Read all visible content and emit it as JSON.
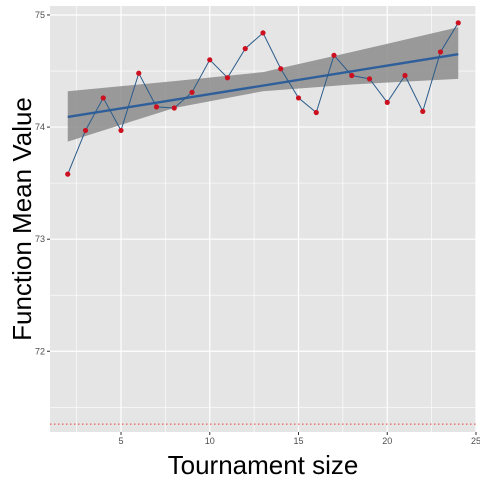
{
  "chart_data": {
    "type": "line",
    "title": "",
    "xlabel": "Tournament size",
    "ylabel": "Function Mean Value",
    "xlim": [
      1.0,
      25.0
    ],
    "ylim": [
      71.28,
      75.08
    ],
    "x_ticks": [
      5,
      10,
      15,
      20,
      25
    ],
    "y_ticks": [
      72,
      73,
      74,
      75
    ],
    "x_tick_labels": [
      "5",
      "10",
      "15",
      "20",
      "25"
    ],
    "y_tick_labels": [
      "72",
      "73",
      "74",
      "75"
    ],
    "grid": true,
    "legend": "none",
    "series": [
      {
        "x": [
          2,
          3,
          4,
          5,
          6,
          7,
          8,
          9,
          10,
          11,
          12,
          13,
          14,
          15,
          16,
          17,
          18,
          19,
          20,
          21,
          22,
          23,
          24
        ],
        "values": [
          73.58,
          73.97,
          74.26,
          73.97,
          74.48,
          74.18,
          74.17,
          74.31,
          74.6,
          74.44,
          74.7,
          74.84,
          74.52,
          74.26,
          74.13,
          74.64,
          74.46,
          74.43,
          74.22,
          74.46,
          74.14,
          74.67,
          74.93
        ],
        "line_color": "#2b5b8a",
        "point_color": "#cc1020"
      }
    ],
    "trend": {
      "x": [
        2,
        24
      ],
      "values": [
        74.09,
        74.65
      ],
      "color": "#2f5f9a"
    },
    "confidence_band": {
      "x": [
        2,
        8,
        13,
        18,
        24
      ],
      "lower": [
        73.87,
        74.17,
        74.32,
        74.38,
        74.43
      ],
      "upper": [
        74.32,
        74.41,
        74.49,
        74.67,
        74.89
      ],
      "color": "#8c8c8c"
    },
    "reference_line": {
      "y": 71.35,
      "color": "#e8403a",
      "style": "dotted"
    },
    "panel_background": "#e5e5e5",
    "grid_color": "#ffffff"
  }
}
